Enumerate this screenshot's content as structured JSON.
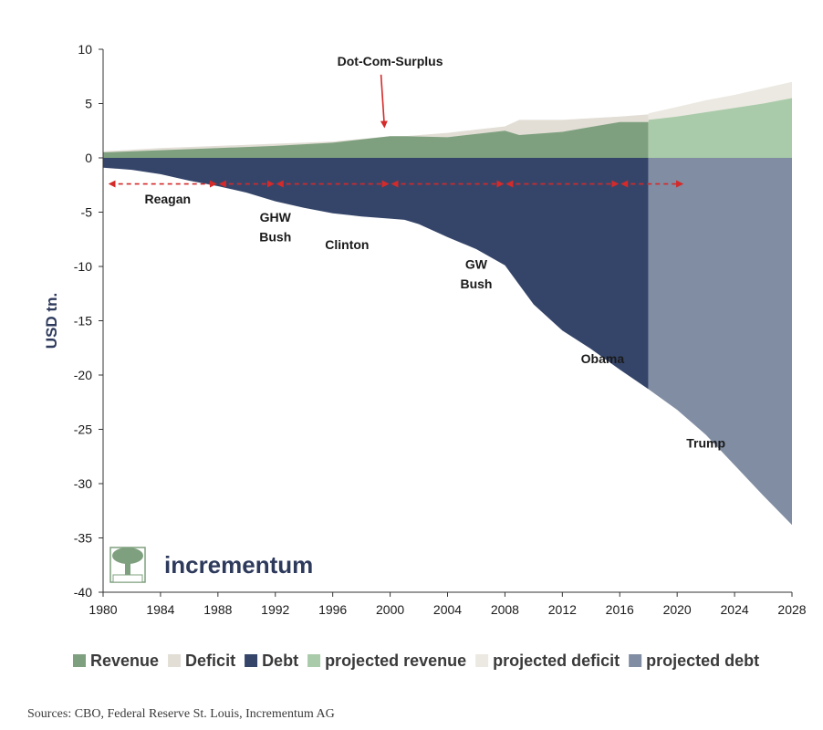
{
  "chart_data": {
    "type": "area",
    "ylabel": "USD tn.",
    "xlabel": "",
    "xlim": [
      1980,
      2028
    ],
    "ylim": [
      -40,
      10
    ],
    "x_ticks": [
      "1980",
      "1984",
      "1988",
      "1992",
      "1996",
      "2000",
      "2004",
      "2008",
      "2012",
      "2016",
      "2020",
      "2024",
      "2028"
    ],
    "y_ticks": [
      "10",
      "5",
      "0",
      "-5",
      "-10",
      "-15",
      "-20",
      "-25",
      "-30",
      "-35",
      "-40"
    ],
    "series": [
      {
        "name": "Revenue",
        "color": "#7fa07f",
        "x": [
          1980,
          1984,
          1988,
          1992,
          1996,
          2000,
          2001,
          2004,
          2008,
          2009,
          2012,
          2016,
          2018
        ],
        "y": [
          0.5,
          0.7,
          0.9,
          1.1,
          1.4,
          2.0,
          2.0,
          1.9,
          2.5,
          2.1,
          2.4,
          3.3,
          3.3
        ]
      },
      {
        "name": "Deficit",
        "color": "#e2ded6",
        "x": [
          1980,
          1984,
          1988,
          1992,
          1996,
          2000,
          2001,
          2004,
          2008,
          2009,
          2012,
          2016,
          2018
        ],
        "y": [
          0.6,
          0.9,
          1.1,
          1.3,
          1.5,
          2.0,
          2.0,
          2.3,
          2.9,
          3.5,
          3.5,
          3.8,
          4.0
        ]
      },
      {
        "name": "Debt",
        "color": "#35456a",
        "x": [
          1980,
          1982,
          1984,
          1986,
          1988,
          1990,
          1992,
          1994,
          1996,
          1998,
          2000,
          2001,
          2002,
          2004,
          2006,
          2008,
          2009,
          2010,
          2012,
          2014,
          2016,
          2018
        ],
        "y": [
          -0.9,
          -1.1,
          -1.5,
          -2.1,
          -2.6,
          -3.2,
          -4.0,
          -4.6,
          -5.1,
          -5.4,
          -5.6,
          -5.7,
          -6.1,
          -7.3,
          -8.4,
          -9.9,
          -11.7,
          -13.5,
          -15.9,
          -17.6,
          -19.5,
          -21.3
        ]
      },
      {
        "name": "projected revenue",
        "color": "#a9cba9",
        "x": [
          2018,
          2020,
          2022,
          2024,
          2026,
          2028
        ],
        "y": [
          3.5,
          3.8,
          4.2,
          4.6,
          5.0,
          5.5
        ]
      },
      {
        "name": "projected deficit",
        "color": "#ece9e2",
        "x": [
          2018,
          2020,
          2022,
          2024,
          2026,
          2028
        ],
        "y": [
          4.1,
          4.7,
          5.3,
          5.8,
          6.4,
          7.0
        ]
      },
      {
        "name": "projected debt",
        "color": "#808da3",
        "x": [
          2018,
          2020,
          2022,
          2024,
          2026,
          2028
        ],
        "y": [
          -21.3,
          -23.2,
          -25.5,
          -28.3,
          -31.1,
          -33.8
        ]
      }
    ],
    "presidency_arrows": {
      "y": -2.4,
      "color": "#d42a2a",
      "points": [
        1980.3,
        1988,
        1992,
        2000,
        2008,
        2016,
        2020.5
      ],
      "dash_extension_end": 2020.5
    },
    "annotations": [
      {
        "text": "Dot-Com-Surplus",
        "x": 2000,
        "y": 8.5,
        "arrow_to": [
          1999.6,
          2.9
        ]
      },
      {
        "text": "Reagan",
        "x": 1984.5,
        "y": -4.2
      },
      {
        "text": "GHW",
        "x": 1992,
        "y": -5.9
      },
      {
        "text": "Bush",
        "x": 1992,
        "y": -7.7
      },
      {
        "text": "Clinton",
        "x": 1997,
        "y": -8.4
      },
      {
        "text": "GW",
        "x": 2006,
        "y": -10.2
      },
      {
        "text": "Bush",
        "x": 2006,
        "y": -12.0
      },
      {
        "text": "Obama",
        "x": 2014.8,
        "y": -18.9
      },
      {
        "text": "Trump",
        "x": 2022,
        "y": -26.7
      }
    ],
    "legend_position": "bottom"
  },
  "branding": {
    "logo_text": "incrementum",
    "logo_icon": "tree-icon",
    "logo_color": "#7fa07f"
  },
  "source_text": "Sources: CBO, Federal Reserve St. Louis, Incrementum AG"
}
